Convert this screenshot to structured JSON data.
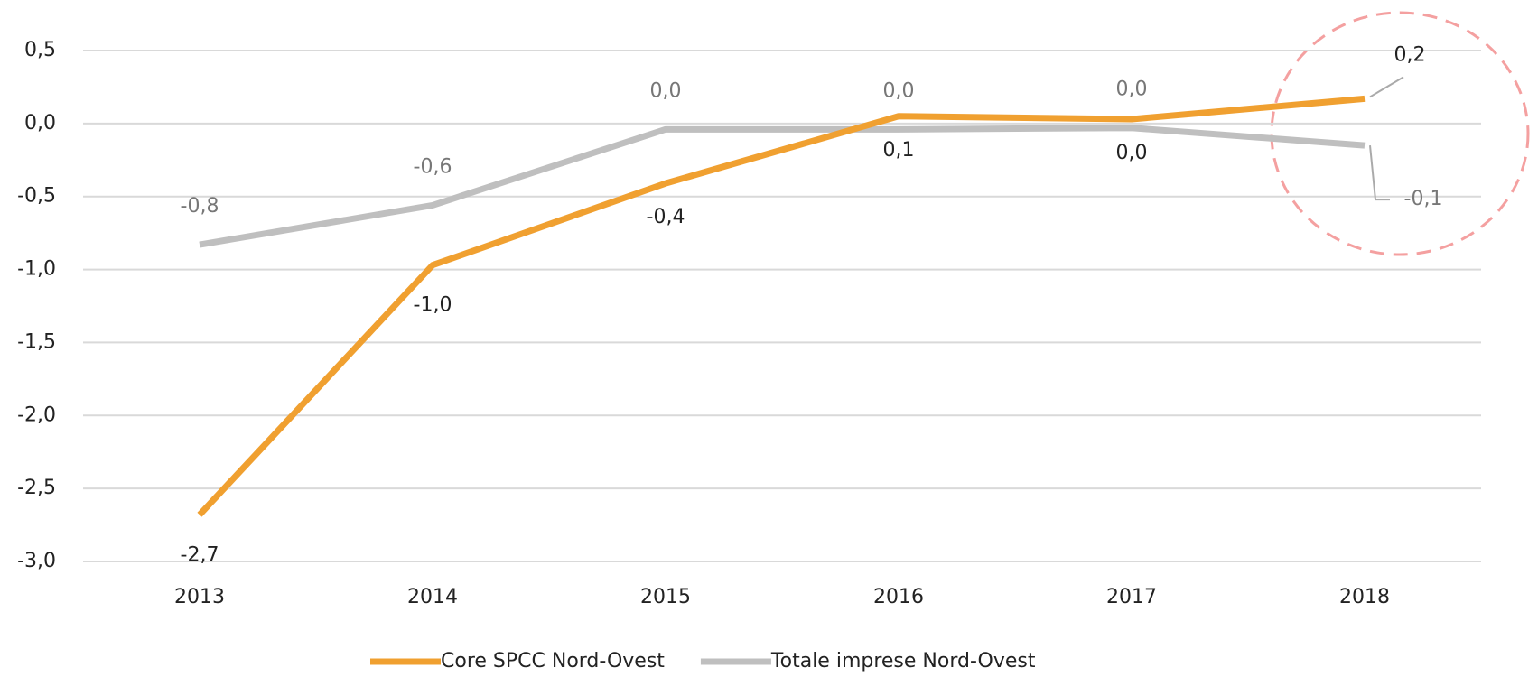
{
  "chart_data": {
    "type": "line",
    "categories": [
      "2013",
      "2014",
      "2015",
      "2016",
      "2017",
      "2018"
    ],
    "series": [
      {
        "name": "Core SPCC Nord-Ovest",
        "color": "#f0a030",
        "values": [
          -2.68,
          -0.97,
          -0.41,
          0.05,
          0.03,
          0.17
        ],
        "value_labels": [
          "-2,7",
          "-1,0",
          "-0,4",
          "0,1",
          "0,0",
          "0,2"
        ]
      },
      {
        "name": "Totale imprese Nord-Ovest",
        "color": "#bfbfbf",
        "values": [
          -0.83,
          -0.56,
          -0.04,
          -0.04,
          -0.03,
          -0.15
        ],
        "value_labels": [
          "-0,8",
          "-0,6",
          "0,0",
          "0,0",
          "0,0",
          "-0,1"
        ]
      }
    ],
    "ylim": [
      -3,
      0.5
    ],
    "yticks": [
      {
        "value": -3,
        "label": "-3,0"
      },
      {
        "value": -2.5,
        "label": "-2,5"
      },
      {
        "value": -2,
        "label": "-2,0"
      },
      {
        "value": -1.5,
        "label": "-1,5"
      },
      {
        "value": -1,
        "label": "-1,0"
      },
      {
        "value": -0.5,
        "label": "-0,5"
      },
      {
        "value": 0,
        "label": "0,0"
      },
      {
        "value": 0.5,
        "label": "0,5"
      }
    ],
    "grid": true
  }
}
